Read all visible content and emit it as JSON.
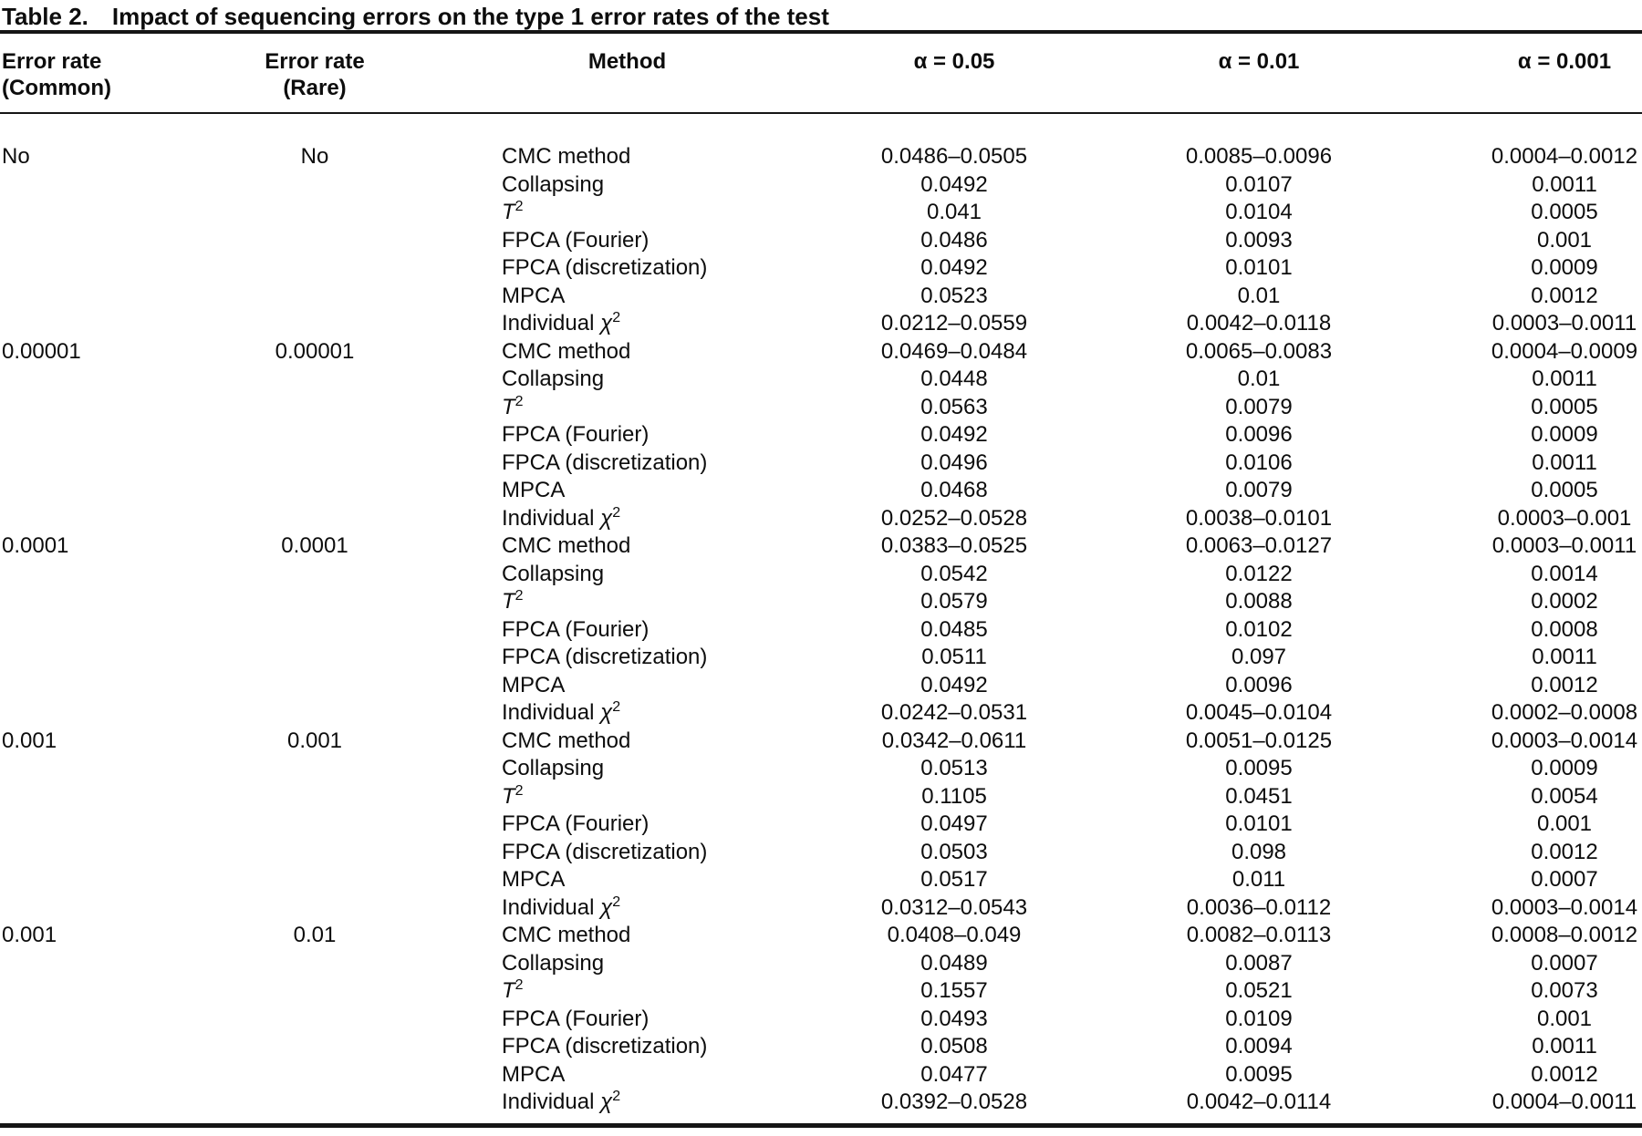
{
  "caption": {
    "label": "Table 2.",
    "text": "Impact of sequencing errors on the type 1 error rates of the test"
  },
  "header": {
    "col1": "Error rate\n(Common)",
    "col2": "Error rate\n(Rare)",
    "col3": "Method",
    "col4": "α = 0.05",
    "col5": "α = 0.01",
    "col6": "α = 0.001"
  },
  "groups": [
    {
      "common": "No",
      "rare": "No",
      "rows": [
        {
          "method": [
            {
              "t": "CMC method"
            }
          ],
          "a05": "0.0486–0.0505",
          "a01": "0.0085–0.0096",
          "a001": "0.0004–0.0012"
        },
        {
          "method": [
            {
              "t": "Collapsing"
            }
          ],
          "a05": "0.0492",
          "a01": "0.0107",
          "a001": "0.0011"
        },
        {
          "method": [
            {
              "t": "T",
              "i": true
            },
            {
              "t": "2",
              "s": true
            }
          ],
          "a05": "0.041",
          "a01": "0.0104",
          "a001": "0.0005"
        },
        {
          "method": [
            {
              "t": "FPCA (Fourier)"
            }
          ],
          "a05": "0.0486",
          "a01": "0.0093",
          "a001": "0.001"
        },
        {
          "method": [
            {
              "t": "FPCA (discretization)"
            }
          ],
          "a05": "0.0492",
          "a01": "0.0101",
          "a001": "0.0009"
        },
        {
          "method": [
            {
              "t": "MPCA"
            }
          ],
          "a05": "0.0523",
          "a01": "0.01",
          "a001": "0.0012"
        },
        {
          "method": [
            {
              "t": "Individual "
            },
            {
              "t": "χ",
              "i": true
            },
            {
              "t": "2",
              "s": true
            }
          ],
          "a05": "0.0212–0.0559",
          "a01": "0.0042–0.0118",
          "a001": "0.0003–0.0011"
        }
      ]
    },
    {
      "common": "0.00001",
      "rare": "0.00001",
      "rows": [
        {
          "method": [
            {
              "t": "CMC method"
            }
          ],
          "a05": "0.0469–0.0484",
          "a01": "0.0065–0.0083",
          "a001": "0.0004–0.0009"
        },
        {
          "method": [
            {
              "t": "Collapsing"
            }
          ],
          "a05": "0.0448",
          "a01": "0.01",
          "a001": "0.0011"
        },
        {
          "method": [
            {
              "t": "T",
              "i": true
            },
            {
              "t": "2",
              "s": true
            }
          ],
          "a05": "0.0563",
          "a01": "0.0079",
          "a001": "0.0005"
        },
        {
          "method": [
            {
              "t": "FPCA (Fourier)"
            }
          ],
          "a05": "0.0492",
          "a01": "0.0096",
          "a001": "0.0009"
        },
        {
          "method": [
            {
              "t": "FPCA (discretization)"
            }
          ],
          "a05": "0.0496",
          "a01": "0.0106",
          "a001": "0.0011"
        },
        {
          "method": [
            {
              "t": "MPCA"
            }
          ],
          "a05": "0.0468",
          "a01": "0.0079",
          "a001": "0.0005"
        },
        {
          "method": [
            {
              "t": "Individual "
            },
            {
              "t": "χ",
              "i": true
            },
            {
              "t": "2",
              "s": true
            }
          ],
          "a05": "0.0252–0.0528",
          "a01": "0.0038–0.0101",
          "a001": "0.0003–0.001"
        }
      ]
    },
    {
      "common": "0.0001",
      "rare": "0.0001",
      "rows": [
        {
          "method": [
            {
              "t": "CMC method"
            }
          ],
          "a05": "0.0383–0.0525",
          "a01": "0.0063–0.0127",
          "a001": "0.0003–0.0011"
        },
        {
          "method": [
            {
              "t": "Collapsing"
            }
          ],
          "a05": "0.0542",
          "a01": "0.0122",
          "a001": "0.0014"
        },
        {
          "method": [
            {
              "t": "T",
              "i": true
            },
            {
              "t": "2",
              "s": true
            }
          ],
          "a05": "0.0579",
          "a01": "0.0088",
          "a001": "0.0002"
        },
        {
          "method": [
            {
              "t": "FPCA (Fourier)"
            }
          ],
          "a05": "0.0485",
          "a01": "0.0102",
          "a001": "0.0008"
        },
        {
          "method": [
            {
              "t": "FPCA (discretization)"
            }
          ],
          "a05": "0.0511",
          "a01": "0.097",
          "a001": "0.0011"
        },
        {
          "method": [
            {
              "t": "MPCA"
            }
          ],
          "a05": "0.0492",
          "a01": "0.0096",
          "a001": "0.0012"
        },
        {
          "method": [
            {
              "t": "Individual "
            },
            {
              "t": "χ",
              "i": true
            },
            {
              "t": "2",
              "s": true
            }
          ],
          "a05": "0.0242–0.0531",
          "a01": "0.0045–0.0104",
          "a001": "0.0002–0.0008"
        }
      ]
    },
    {
      "common": "0.001",
      "rare": "0.001",
      "rows": [
        {
          "method": [
            {
              "t": "CMC method"
            }
          ],
          "a05": "0.0342–0.0611",
          "a01": "0.0051–0.0125",
          "a001": "0.0003–0.0014"
        },
        {
          "method": [
            {
              "t": "Collapsing"
            }
          ],
          "a05": "0.0513",
          "a01": "0.0095",
          "a001": "0.0009"
        },
        {
          "method": [
            {
              "t": "T",
              "i": true
            },
            {
              "t": "2",
              "s": true
            }
          ],
          "a05": "0.1105",
          "a01": "0.0451",
          "a001": "0.0054"
        },
        {
          "method": [
            {
              "t": "FPCA (Fourier)"
            }
          ],
          "a05": "0.0497",
          "a01": "0.0101",
          "a001": "0.001"
        },
        {
          "method": [
            {
              "t": "FPCA (discretization)"
            }
          ],
          "a05": "0.0503",
          "a01": "0.098",
          "a001": "0.0012"
        },
        {
          "method": [
            {
              "t": "MPCA"
            }
          ],
          "a05": "0.0517",
          "a01": "0.011",
          "a001": "0.0007"
        },
        {
          "method": [
            {
              "t": "Individual "
            },
            {
              "t": "χ",
              "i": true
            },
            {
              "t": "2",
              "s": true
            }
          ],
          "a05": "0.0312–0.0543",
          "a01": "0.0036–0.0112",
          "a001": "0.0003–0.0014"
        }
      ]
    },
    {
      "common": "0.001",
      "rare": "0.01",
      "rows": [
        {
          "method": [
            {
              "t": "CMC method"
            }
          ],
          "a05": "0.0408–0.049",
          "a01": "0.0082–0.0113",
          "a001": "0.0008–0.0012"
        },
        {
          "method": [
            {
              "t": "Collapsing"
            }
          ],
          "a05": "0.0489",
          "a01": "0.0087",
          "a001": "0.0007"
        },
        {
          "method": [
            {
              "t": "T",
              "i": true
            },
            {
              "t": "2",
              "s": true
            }
          ],
          "a05": "0.1557",
          "a01": "0.0521",
          "a001": "0.0073"
        },
        {
          "method": [
            {
              "t": "FPCA (Fourier)"
            }
          ],
          "a05": "0.0493",
          "a01": "0.0109",
          "a001": "0.001"
        },
        {
          "method": [
            {
              "t": "FPCA (discretization)"
            }
          ],
          "a05": "0.0508",
          "a01": "0.0094",
          "a001": "0.0011"
        },
        {
          "method": [
            {
              "t": "MPCA"
            }
          ],
          "a05": "0.0477",
          "a01": "0.0095",
          "a001": "0.0012"
        },
        {
          "method": [
            {
              "t": "Individual "
            },
            {
              "t": "χ",
              "i": true
            },
            {
              "t": "2",
              "s": true
            }
          ],
          "a05": "0.0392–0.0528",
          "a01": "0.0042–0.0114",
          "a001": "0.0004–0.0011"
        }
      ]
    }
  ]
}
